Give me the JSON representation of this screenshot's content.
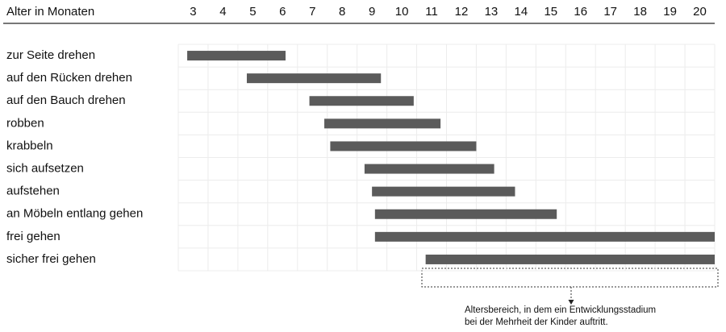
{
  "chart_data": {
    "type": "range_bar",
    "x_label": "Alter in Monaten",
    "categories": [
      "zur Seite drehen",
      "auf den Rücken drehen",
      "auf den Bauch drehen",
      "robben",
      "krabbeln",
      "sich aufsetzen",
      "aufstehen",
      "an Möbeln entlang gehen",
      "frei gehen",
      "sicher frei gehen"
    ],
    "starts": [
      2.8,
      4.8,
      6.9,
      7.4,
      7.6,
      8.75,
      9.0,
      9.1,
      9.1,
      10.8
    ],
    "ends": [
      6.1,
      9.3,
      10.4,
      11.3,
      12.5,
      13.1,
      13.8,
      15.2,
      20.5,
      20.5
    ],
    "color": "#5b5b5b",
    "xlim": [
      2.5,
      20.5
    ],
    "xticks": [
      3,
      4,
      5,
      6,
      7,
      8,
      9,
      10,
      11,
      12,
      13,
      14,
      15,
      16,
      17,
      18,
      19,
      20
    ],
    "grid": true,
    "annotation": [
      "Altersbereich, in dem ein Entwicklungsstadium",
      "bei der Mehrheit der Kinder auftritt."
    ]
  }
}
